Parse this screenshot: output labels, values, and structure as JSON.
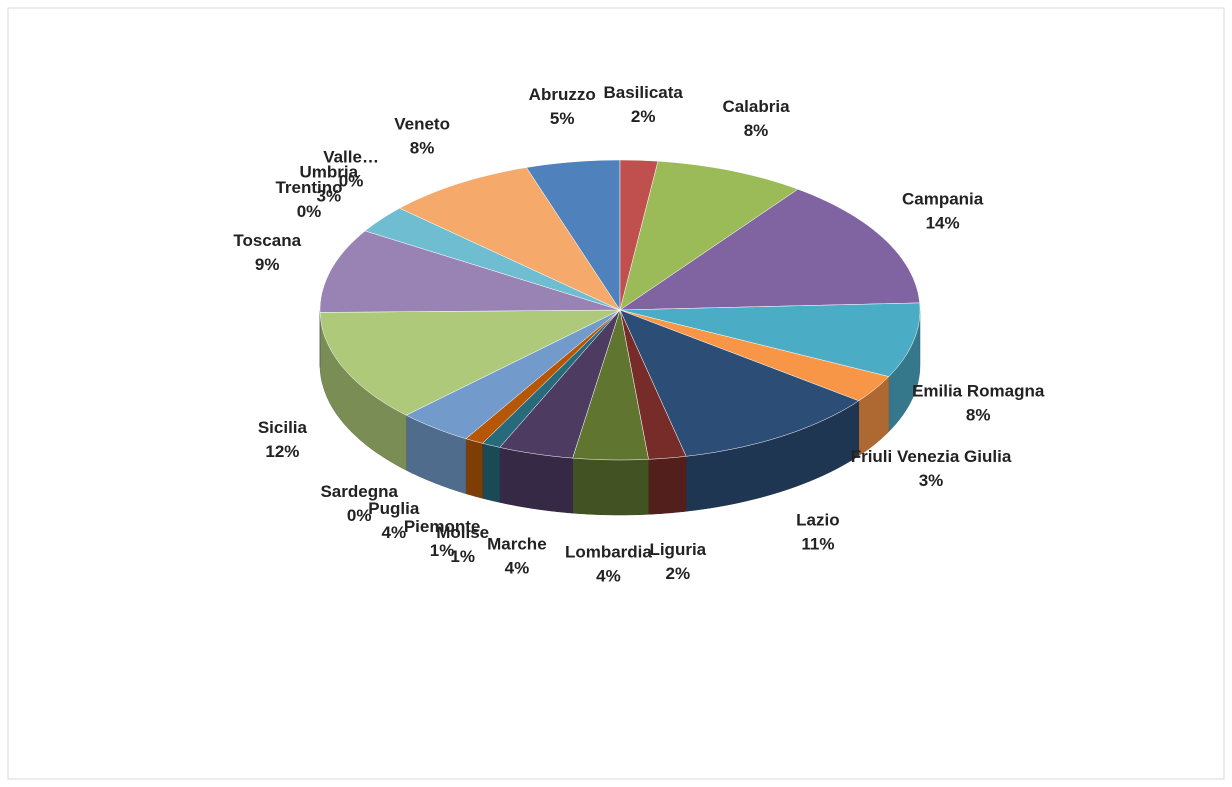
{
  "chart_data": {
    "type": "pie3d",
    "categories": [
      "Abruzzo",
      "Basilicata",
      "Calabria",
      "Campania",
      "Emilia Romagna",
      "Friuli Venezia Giulia",
      "Lazio",
      "Liguria",
      "Lombardia",
      "Marche",
      "Molise",
      "Piemonte",
      "Puglia",
      "Sardegna",
      "Sicilia",
      "Toscana",
      "Trentino",
      "Umbria",
      "Valle…",
      "Veneto"
    ],
    "values": [
      5,
      2,
      8,
      14,
      8,
      3,
      11,
      2,
      4,
      4,
      1,
      1,
      4,
      0,
      12,
      9,
      0,
      3,
      0,
      8
    ],
    "value_labels": [
      "5%",
      "2%",
      "8%",
      "14%",
      "8%",
      "3%",
      "11%",
      "2%",
      "4%",
      "4%",
      "1%",
      "1%",
      "4%",
      "0%",
      "12%",
      "9%",
      "0%",
      "3%",
      "0%",
      "8%"
    ],
    "colors": [
      "#4f81bd",
      "#c0504d",
      "#9bbb59",
      "#8064a2",
      "#4bacc6",
      "#f79646",
      "#2c4d75",
      "#772c2a",
      "#5f7530",
      "#4d3b62",
      "#276a7c",
      "#b65708",
      "#729aca",
      "#cd7371",
      "#afc97a",
      "#9983b5",
      "#9e3b39",
      "#6fbdd1",
      "#3a679c",
      "#f5a96a"
    ]
  }
}
